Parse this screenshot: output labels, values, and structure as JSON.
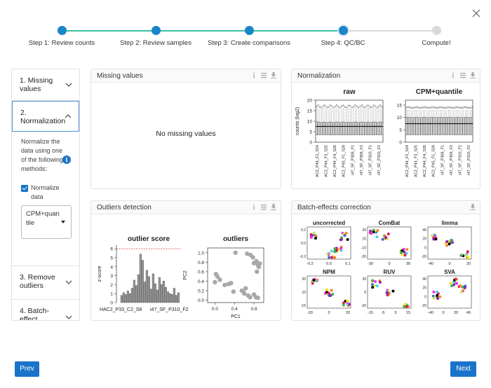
{
  "stepper": {
    "steps": [
      {
        "label": "Step 1: Review counts",
        "state": "done"
      },
      {
        "label": "Step 2: Review samples",
        "state": "done"
      },
      {
        "label": "Step 3: Create comparisons",
        "state": "done"
      },
      {
        "label": "Step 4: QC/BC",
        "state": "active"
      },
      {
        "label": "Compute!",
        "state": "pending"
      }
    ],
    "colors": {
      "done": "#1a85c8",
      "line": "#3cbf9e",
      "pending": "#d9d9d9"
    }
  },
  "sidebar": {
    "items": [
      {
        "label": "1. Missing values"
      },
      {
        "label": "2. Normalization"
      },
      {
        "label": "3. Remove outliers"
      },
      {
        "label": "4. Batch-effect"
      }
    ],
    "normalization": {
      "description": "Normalize the data using one of the following methods:",
      "checkbox_label": "Normalize data",
      "checked": true,
      "method": "CPM+quantile"
    }
  },
  "panels": {
    "missing": {
      "title": "Missing values",
      "message": "No missing values"
    },
    "normalization": {
      "title": "Normalization"
    },
    "outliers": {
      "title": "Outliers detection"
    },
    "batch": {
      "title": "Batch-effects correction"
    }
  },
  "chart_data": [
    {
      "type": "box",
      "title": "raw",
      "ylabel": "counts (log2)",
      "yticks": [
        "0",
        "5",
        "10",
        "15",
        "20"
      ],
      "ylim": [
        0,
        20
      ],
      "n_samples": 40,
      "median": 7.5,
      "q1": 3.5,
      "q3": 9.5,
      "whisker_high": 16,
      "categories": [
        "AC2_P44_F2_S24",
        "AC2_P44_F3_S25",
        "AC2_P44_F4_S26",
        "AC2_P45_F1_S28",
        "i47_SF_P308_F1",
        "i47_SF_P309_F2",
        "i47_SF_P310_F1",
        "i47_SF_P310_F2"
      ]
    },
    {
      "type": "box",
      "title": "CPM+quantile",
      "yticks": [
        "0",
        "5",
        "10",
        "15"
      ],
      "ylim": [
        0,
        17
      ],
      "n_samples": 40,
      "median": 7.5,
      "q1": 3,
      "q3": 10,
      "whisker_high": 13,
      "categories": [
        "AC2_P44_F2_S24",
        "AC2_P44_F3_S25",
        "AC2_P44_F4_S26",
        "AC2_P45_F1_S28",
        "i47_SF_P308_F1",
        "i47_SF_P309_F2",
        "i47_SF_P310_F1",
        "i47_SF_P310_F2"
      ]
    },
    {
      "type": "bar",
      "title": "outlier score",
      "ylabel": "z-score",
      "yticks": [
        "0",
        "1",
        "2",
        "3",
        "4",
        "5",
        "6"
      ],
      "ylim": [
        0,
        6.4
      ],
      "threshold": 6,
      "values": [
        0.8,
        1.1,
        0.9,
        1.3,
        1.0,
        1.6,
        2.5,
        1.9,
        3.1,
        5.4,
        4.7,
        2.3,
        3.6,
        2.9,
        1.5,
        3.2,
        2.1,
        1.4,
        2.8,
        2.0,
        2.4,
        1.7,
        1.2,
        1.0,
        0.9,
        1.6,
        0.8,
        1.1
      ],
      "xtick_labels": [
        "HAC2_P33_C2_S8",
        "i47_SF_P310_F2"
      ]
    },
    {
      "type": "scatter",
      "title": "outliers",
      "xlabel": "PC1",
      "ylabel": "PC2",
      "xticks": [
        "0.0",
        "0.4",
        "0.8"
      ],
      "yticks": [
        "0.0",
        "0.2",
        "0.4",
        "0.6",
        "0.8",
        "1.0"
      ],
      "xlim": [
        -0.15,
        1.0
      ],
      "ylim": [
        -0.05,
        1.1
      ],
      "x": [
        0.02,
        0.05,
        0.1,
        0.0,
        0.2,
        0.28,
        0.33,
        0.38,
        0.58,
        0.63,
        0.68,
        0.66,
        0.73,
        0.78,
        0.85,
        0.88,
        0.9,
        0.86,
        0.8,
        0.92,
        0.55,
        0.6,
        0.72,
        0.8,
        0.84,
        0.88,
        0.42
      ],
      "y": [
        0.55,
        0.5,
        0.43,
        0.38,
        0.32,
        0.34,
        0.36,
        0.18,
        0.18,
        0.25,
        0.1,
        0.98,
        0.95,
        0.9,
        0.82,
        0.74,
        0.7,
        0.6,
        0.78,
        0.77,
        0.2,
        0.14,
        0.06,
        0.12,
        0.06,
        0.05,
        1.0
      ]
    }
  ],
  "batch_plots": [
    {
      "title": "uncorrected",
      "xticks": [
        "-0.2",
        "0.0",
        "0.1"
      ],
      "yticks": [
        "0.2",
        "0.0",
        "-0.2"
      ]
    },
    {
      "title": "ComBat",
      "xticks": [
        "-30",
        "0",
        "30"
      ],
      "yticks": [
        "20",
        "10",
        "-10",
        "-20"
      ]
    },
    {
      "title": "limma",
      "xticks": [
        "-40",
        "0",
        "20"
      ],
      "yticks": [
        "40",
        "20",
        "0",
        "-20"
      ]
    },
    {
      "title": "NPM",
      "xticks": [
        "-20",
        "0",
        "20"
      ],
      "yticks": [
        "20",
        "10",
        "-15"
      ]
    },
    {
      "title": "RUV",
      "xticks": [
        "-15",
        "-5",
        "5",
        "15"
      ],
      "yticks": [
        "20",
        "0",
        "-20"
      ]
    },
    {
      "title": "SVA",
      "xticks": [
        "-40",
        "0",
        "20",
        "40"
      ],
      "yticks": [
        "40",
        "20",
        "0",
        "-20"
      ]
    }
  ],
  "footer": {
    "prev": "Prev",
    "next": "Next"
  }
}
